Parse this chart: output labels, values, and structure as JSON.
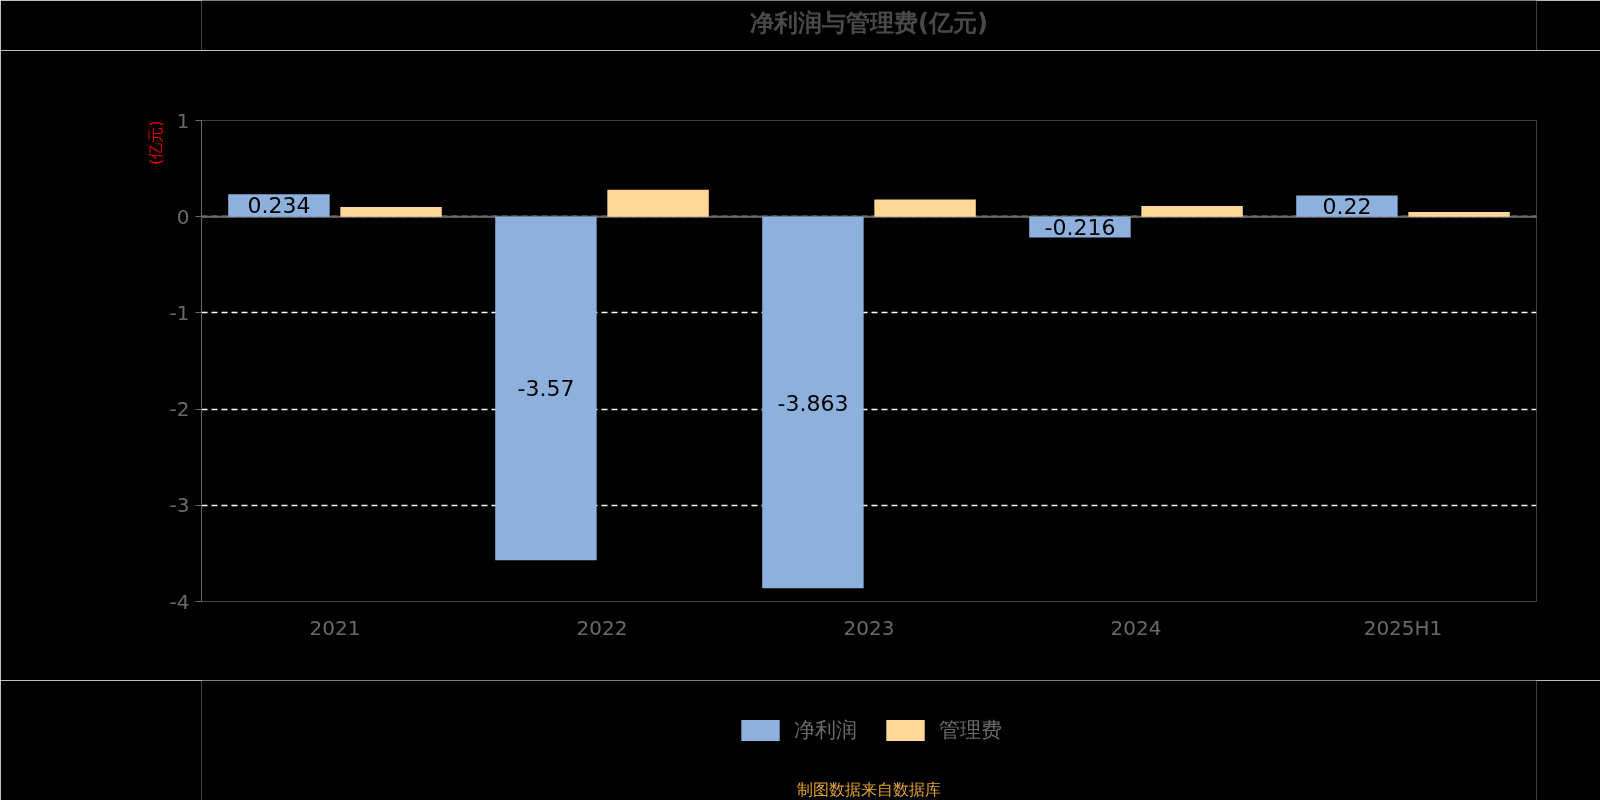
{
  "chart_data": {
    "type": "bar",
    "title": "净利润与管理费(亿元)",
    "ylabel": "(亿元)",
    "categories": [
      "2021",
      "2022",
      "2023",
      "2024",
      "2025H1"
    ],
    "series": [
      {
        "name": "净利润",
        "color": "#8eb0dc",
        "values": [
          0.234,
          -3.57,
          -3.863,
          -0.216,
          0.22
        ],
        "value_labels": [
          "0.234",
          "-3.57",
          "-3.863",
          "-0.216",
          "0.22"
        ]
      },
      {
        "name": "管理费",
        "color": "#ffd797",
        "values": [
          0.1,
          0.28,
          0.18,
          0.11,
          0.05
        ]
      }
    ],
    "ylim": [
      -4,
      1
    ],
    "yticks": [
      -4,
      -3,
      -2,
      -1,
      0,
      1
    ],
    "grid": "y",
    "legend": "bottom",
    "annotations": [
      "制图数据来自数据库"
    ]
  }
}
